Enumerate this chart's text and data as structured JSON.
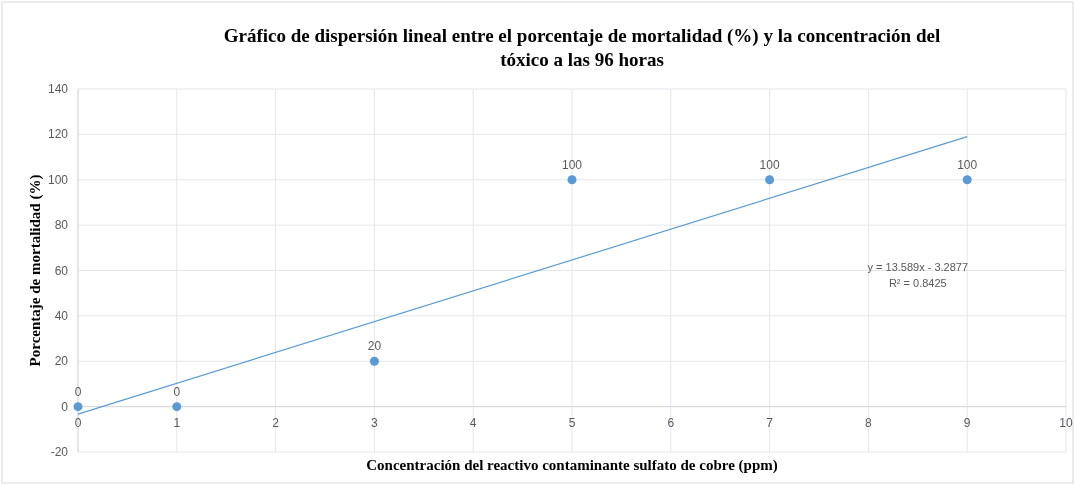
{
  "chart_data": {
    "type": "scatter",
    "title": "Gráfico de dispersión  lineal entre el porcentaje de mortalidad (%) y la concentración del tóxico a las 96 horas",
    "xlabel": "Concentración del reactivo contaminante sulfato de cobre (ppm)",
    "ylabel": "Porcentaje de mortalidad (%)",
    "xlim": [
      0,
      10
    ],
    "xticks": [
      0,
      1,
      2,
      3,
      4,
      5,
      6,
      7,
      8,
      9,
      10
    ],
    "ylim": [
      -20,
      140
    ],
    "yticks": [
      -20,
      0,
      20,
      40,
      60,
      80,
      100,
      120,
      140
    ],
    "grid": true,
    "series": [
      {
        "color": "#5b9bd5",
        "x": [
          0,
          1,
          3,
          5,
          7,
          9
        ],
        "values": [
          0,
          0,
          20,
          100,
          100,
          100
        ],
        "marker": "circle",
        "value_labels": [
          "0",
          "0",
          "20",
          "100",
          "100",
          "100"
        ]
      },
      {
        "type": "line",
        "color": "#5b9bd5",
        "x": [
          0,
          9
        ],
        "values": [
          -3.3,
          119
        ],
        "line_style": "solid"
      }
    ],
    "annotations": [
      "y = 13.589x - 3.2877",
      "R² = 0.8425"
    ]
  }
}
